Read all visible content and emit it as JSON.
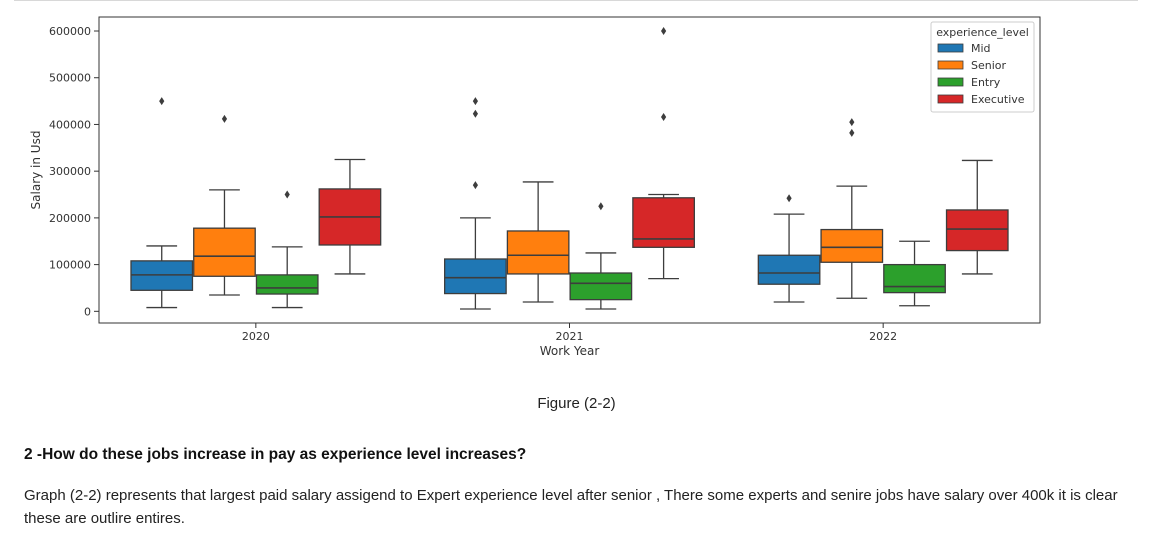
{
  "chart_data": {
    "type": "box",
    "categories": [
      "2020",
      "2021",
      "2022"
    ],
    "xlabel": "Work Year",
    "ylabel": "Salary in Usd",
    "ylim": [
      -25000,
      630000
    ],
    "yticks": [
      0,
      100000,
      200000,
      300000,
      400000,
      500000,
      600000
    ],
    "grid": false,
    "legend": {
      "title": "experience_level",
      "position": "top-right"
    },
    "series": [
      {
        "name": "Mid",
        "color": "#1f77b4",
        "boxes": [
          {
            "whislo": 8000,
            "q1": 45000,
            "med": 78000,
            "q3": 108000,
            "whishi": 140000,
            "fliers": [
              450000
            ]
          },
          {
            "whislo": 5000,
            "q1": 38000,
            "med": 72000,
            "q3": 112000,
            "whishi": 200000,
            "fliers": [
              270000,
              423000,
              450000
            ]
          },
          {
            "whislo": 20000,
            "q1": 58000,
            "med": 82000,
            "q3": 120000,
            "whishi": 208000,
            "fliers": [
              242000
            ]
          }
        ]
      },
      {
        "name": "Senior",
        "color": "#ff7f0e",
        "boxes": [
          {
            "whislo": 35000,
            "q1": 75000,
            "med": 118000,
            "q3": 178000,
            "whishi": 260000,
            "fliers": [
              412000
            ]
          },
          {
            "whislo": 20000,
            "q1": 80000,
            "med": 120000,
            "q3": 172000,
            "whishi": 277000,
            "fliers": []
          },
          {
            "whislo": 28000,
            "q1": 105000,
            "med": 137000,
            "q3": 175000,
            "whishi": 268000,
            "fliers": [
              382000,
              405000
            ]
          }
        ]
      },
      {
        "name": "Entry",
        "color": "#2ca02c",
        "boxes": [
          {
            "whislo": 8000,
            "q1": 37000,
            "med": 50000,
            "q3": 78000,
            "whishi": 138000,
            "fliers": [
              250000
            ]
          },
          {
            "whislo": 5000,
            "q1": 25000,
            "med": 60000,
            "q3": 82000,
            "whishi": 125000,
            "fliers": [
              225000
            ]
          },
          {
            "whislo": 12000,
            "q1": 40000,
            "med": 53000,
            "q3": 100000,
            "whishi": 150000,
            "fliers": []
          }
        ]
      },
      {
        "name": "Executive",
        "color": "#d62728",
        "boxes": [
          {
            "whislo": 80000,
            "q1": 142000,
            "med": 202000,
            "q3": 262000,
            "whishi": 325000,
            "fliers": []
          },
          {
            "whislo": 70000,
            "q1": 137000,
            "med": 155000,
            "q3": 243000,
            "whishi": 250000,
            "fliers": [
              416000,
              600000
            ]
          },
          {
            "whislo": 80000,
            "q1": 130000,
            "med": 176000,
            "q3": 217000,
            "whishi": 323000,
            "fliers": []
          }
        ]
      }
    ]
  },
  "caption": "Figure (2-2)",
  "question": "2 -How do these jobs increase in pay as experience level increases?",
  "body_text": "Graph (2-2) represents that largest paid salary assigend to Expert experience level after senior , There some experts and senire jobs have salary over 400k it is clear these are outlire entires."
}
